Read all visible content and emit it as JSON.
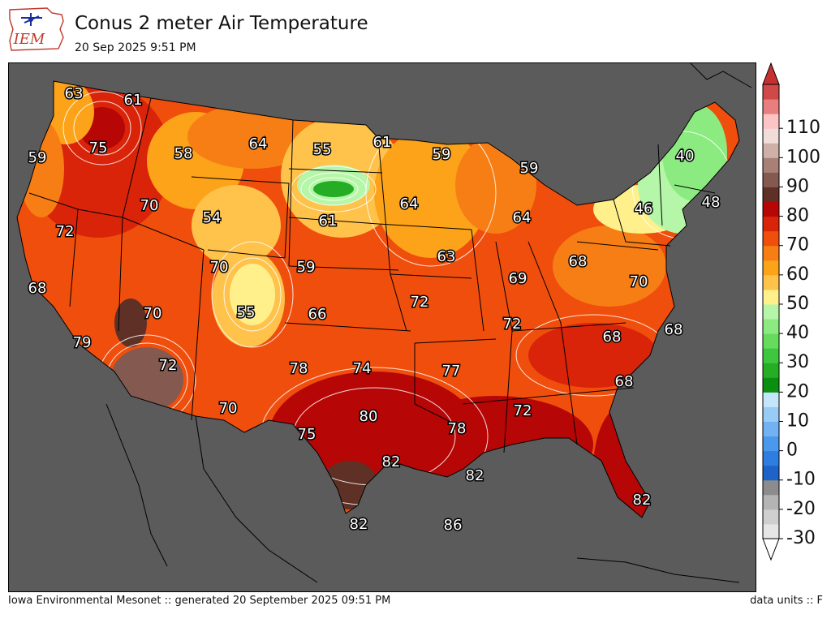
{
  "header": {
    "title": "Conus 2 meter Air Temperature",
    "subtitle": "20 Sep 2025 9:51 PM",
    "logo_text": "IEM"
  },
  "footer": {
    "left": "Iowa Environmental Mesonet :: generated 20 September 2025 09:51 PM",
    "right": "data units :: F"
  },
  "colors": {
    "ocean_land_mask": "#5b5b5b",
    "border": "#000000",
    "label_fill": "#ffffff",
    "label_stroke": "#000000"
  },
  "colorbar": {
    "tick_labels": [
      "110",
      "100",
      "90",
      "80",
      "70",
      "60",
      "50",
      "40",
      "30",
      "20",
      "10",
      "0",
      "-10",
      "-20",
      "-30"
    ],
    "bins": [
      {
        "from": -30,
        "to": -25,
        "color": "#e6e6e6"
      },
      {
        "from": -25,
        "to": -20,
        "color": "#cfcfcf"
      },
      {
        "from": -20,
        "to": -15,
        "color": "#b4b4b4"
      },
      {
        "from": -15,
        "to": -10,
        "color": "#8c8c8c"
      },
      {
        "from": -10,
        "to": -5,
        "color": "#1f62c8"
      },
      {
        "from": -5,
        "to": 0,
        "color": "#2d7ee0"
      },
      {
        "from": 0,
        "to": 5,
        "color": "#4b98ec"
      },
      {
        "from": 5,
        "to": 10,
        "color": "#72b2f2"
      },
      {
        "from": 10,
        "to": 15,
        "color": "#98cbf6"
      },
      {
        "from": 15,
        "to": 20,
        "color": "#c4e6fa"
      },
      {
        "from": 20,
        "to": 25,
        "color": "#0c8e10"
      },
      {
        "from": 25,
        "to": 30,
        "color": "#25ae25"
      },
      {
        "from": 30,
        "to": 35,
        "color": "#3fc63f"
      },
      {
        "from": 35,
        "to": 40,
        "color": "#66dc5c"
      },
      {
        "from": 40,
        "to": 45,
        "color": "#8ceb80"
      },
      {
        "from": 45,
        "to": 50,
        "color": "#b6f6a8"
      },
      {
        "from": 50,
        "to": 55,
        "color": "#fff08c"
      },
      {
        "from": 55,
        "to": 60,
        "color": "#ffc24a"
      },
      {
        "from": 60,
        "to": 65,
        "color": "#fca31a"
      },
      {
        "from": 65,
        "to": 70,
        "color": "#f77e14"
      },
      {
        "from": 70,
        "to": 75,
        "color": "#f04e0c"
      },
      {
        "from": 75,
        "to": 80,
        "color": "#d9240a"
      },
      {
        "from": 80,
        "to": 85,
        "color": "#b60606"
      },
      {
        "from": 85,
        "to": 90,
        "color": "#5e3026"
      },
      {
        "from": 90,
        "to": 95,
        "color": "#845a50"
      },
      {
        "from": 95,
        "to": 100,
        "color": "#a88076"
      },
      {
        "from": 100,
        "to": 105,
        "color": "#ceb0a8"
      },
      {
        "from": 105,
        "to": 110,
        "color": "#f0dcd8"
      },
      {
        "from": 110,
        "to": 115,
        "color": "#fcc4c4"
      },
      {
        "from": 115,
        "to": 120,
        "color": "#e87e7e"
      },
      {
        "from": 120,
        "to": 125,
        "color": "#d04848"
      }
    ],
    "under_color": "#ffffff",
    "over_color": "#c83030"
  },
  "station_values": [
    "63",
    "61",
    "75",
    "59",
    "58",
    "64",
    "55",
    "61",
    "59",
    "59",
    "70",
    "54",
    "61",
    "64",
    "64",
    "72",
    "70",
    "59",
    "63",
    "68",
    "69",
    "68",
    "70",
    "55",
    "66",
    "72",
    "70",
    "79",
    "72",
    "68",
    "68",
    "78",
    "74",
    "77",
    "72",
    "70",
    "80",
    "78",
    "72",
    "75",
    "82",
    "68",
    "82",
    "82",
    "86",
    "82",
    "46",
    "40",
    "48"
  ]
}
